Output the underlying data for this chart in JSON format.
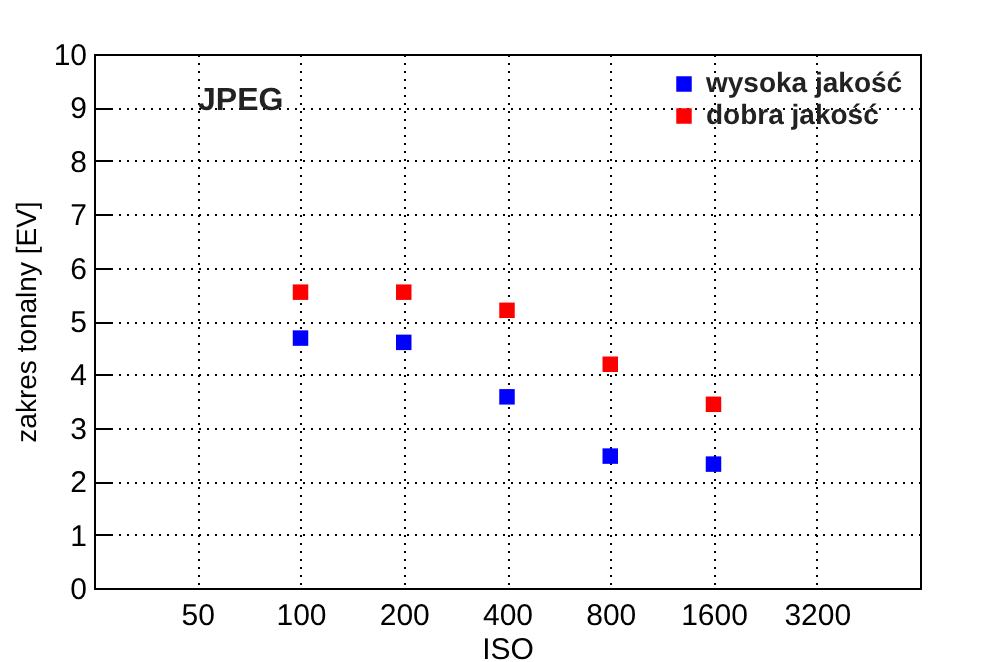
{
  "chart_data": {
    "type": "scatter",
    "xlabel": "ISO",
    "ylabel": "zakres tonalny [EV]",
    "annotations": [
      "JPEG"
    ],
    "x": [
      100,
      200,
      400,
      800,
      1600
    ],
    "series": [
      {
        "name": "wysoka jakość",
        "color": "#0000ff",
        "values": [
          4.68,
          4.6,
          3.58,
          2.47,
          2.32
        ]
      },
      {
        "name": "dobra jakość",
        "color": "#ff0000",
        "values": [
          5.54,
          5.54,
          5.2,
          4.19,
          3.44
        ]
      }
    ],
    "xlim": [
      25,
      6400
    ],
    "xticks": [
      50,
      100,
      200,
      400,
      800,
      1600,
      3200
    ],
    "ylim": [
      0,
      10
    ],
    "yticks": [
      0,
      1,
      2,
      3,
      4,
      5,
      6,
      7,
      8,
      9,
      10
    ],
    "log": "x",
    "grid": true,
    "legend": "top right",
    "marker": "square"
  }
}
